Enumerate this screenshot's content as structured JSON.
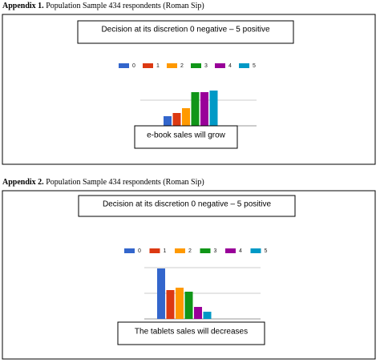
{
  "sections": [
    {
      "label": "Appendix 1.",
      "caption": "Population Sample 434 respondents (Roman Sip)",
      "chart_data": {
        "type": "bar",
        "title": "Decision at its discretion 0 negative – 5 positive",
        "xlabel": "e-book sales will grow",
        "categories": [
          null
        ],
        "ylim": [
          0,
          64
        ],
        "yticks": [
          0,
          32
        ],
        "grid": true,
        "series": [
          {
            "name": "0",
            "color": "#3366cc",
            "values": [
              12
            ]
          },
          {
            "name": "1",
            "color": "#dc3912",
            "values": [
              16
            ]
          },
          {
            "name": "2",
            "color": "#ff9900",
            "values": [
              22
            ]
          },
          {
            "name": "3",
            "color": "#109618",
            "values": [
              42
            ]
          },
          {
            "name": "4",
            "color": "#990099",
            "values": [
              42
            ]
          },
          {
            "name": "5",
            "color": "#0099c6",
            "values": [
              44
            ]
          }
        ]
      }
    },
    {
      "label": "Appendix 2.",
      "caption": "Population Sample 434 respondents (Roman Sip)",
      "chart_data": {
        "type": "bar",
        "title": "Decision at its discretion 0 negative – 5 positive",
        "xlabel": "The tablets sales will decreases",
        "categories": [
          null
        ],
        "ylim": [
          0,
          96
        ],
        "yticks": [
          0,
          32,
          64
        ],
        "grid": true,
        "series": [
          {
            "name": "0",
            "color": "#3366cc",
            "values": [
              63
            ]
          },
          {
            "name": "1",
            "color": "#dc3912",
            "values": [
              36
            ]
          },
          {
            "name": "2",
            "color": "#ff9900",
            "values": [
              39
            ]
          },
          {
            "name": "3",
            "color": "#109618",
            "values": [
              34
            ]
          },
          {
            "name": "4",
            "color": "#990099",
            "values": [
              15
            ]
          },
          {
            "name": "5",
            "color": "#0099c6",
            "values": [
              9
            ]
          }
        ]
      }
    }
  ]
}
